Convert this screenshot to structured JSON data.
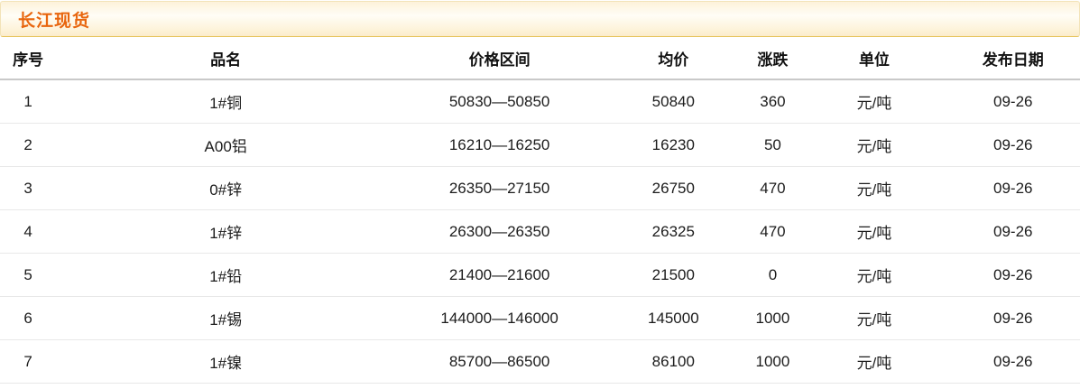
{
  "panel": {
    "title": "长江现货"
  },
  "table": {
    "columns": [
      {
        "key": "index",
        "label": "序号"
      },
      {
        "key": "name",
        "label": "品名"
      },
      {
        "key": "range",
        "label": "价格区间"
      },
      {
        "key": "avg",
        "label": "均价"
      },
      {
        "key": "change",
        "label": "涨跌"
      },
      {
        "key": "unit",
        "label": "单位"
      },
      {
        "key": "date",
        "label": "发布日期"
      }
    ],
    "rows": [
      {
        "index": "1",
        "name": "1#铜",
        "range": "50830—50850",
        "avg": "50840",
        "change": "360",
        "change_direction": "up",
        "unit": "元/吨",
        "date": "09-26"
      },
      {
        "index": "2",
        "name": "A00铝",
        "range": "16210—16250",
        "avg": "16230",
        "change": "50",
        "change_direction": "up",
        "unit": "元/吨",
        "date": "09-26"
      },
      {
        "index": "3",
        "name": "0#锌",
        "range": "26350—27150",
        "avg": "26750",
        "change": "470",
        "change_direction": "up",
        "unit": "元/吨",
        "date": "09-26"
      },
      {
        "index": "4",
        "name": "1#锌",
        "range": "26300—26350",
        "avg": "26325",
        "change": "470",
        "change_direction": "up",
        "unit": "元/吨",
        "date": "09-26"
      },
      {
        "index": "5",
        "name": "1#铅",
        "range": "21400—21600",
        "avg": "21500",
        "change": "0",
        "change_direction": "flat",
        "unit": "元/吨",
        "date": "09-26"
      },
      {
        "index": "6",
        "name": "1#锡",
        "range": "144000—146000",
        "avg": "145000",
        "change": "1000",
        "change_direction": "up",
        "unit": "元/吨",
        "date": "09-26"
      },
      {
        "index": "7",
        "name": "1#镍",
        "range": "85700—86500",
        "avg": "86100",
        "change": "1000",
        "change_direction": "up",
        "unit": "元/吨",
        "date": "09-26"
      }
    ]
  },
  "colors": {
    "title_text": "#e8650d",
    "change_up": "#ee1111",
    "change_flat": "#008000",
    "title_bar_border_bottom": "#e7c55f"
  }
}
